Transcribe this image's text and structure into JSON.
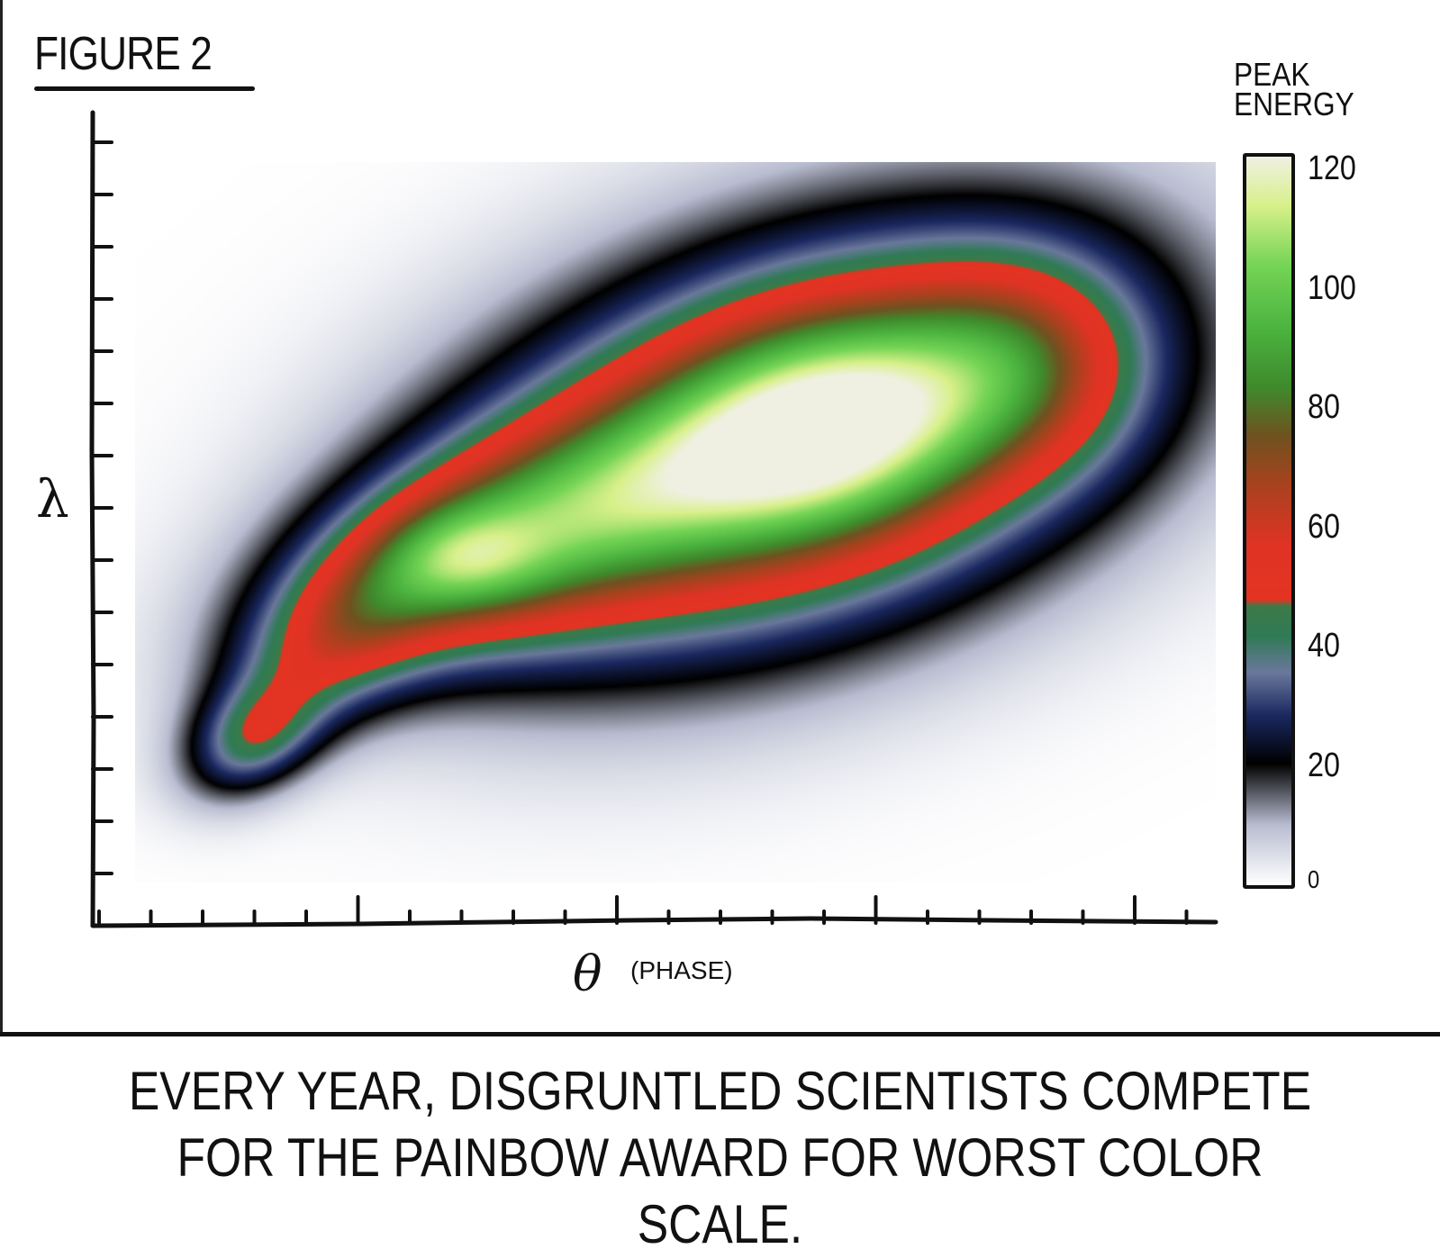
{
  "figure_label": "FIGURE 2",
  "caption": {
    "line1": "EVERY YEAR, DISGRUNTLED SCIENTISTS COMPETE",
    "line2": "FOR THE PAINBOW AWARD FOR WORST COLOR SCALE."
  },
  "chart_data": {
    "type": "heatmap",
    "title": "",
    "xlabel": "θ",
    "xlabel_note": "(PHASE)",
    "ylabel": "λ",
    "colorbar": {
      "label": "PEAK ENERGY",
      "ticks": [
        "0",
        "20",
        "40",
        "60",
        "80",
        "100",
        "120"
      ],
      "range": [
        0,
        120
      ],
      "colormap": [
        {
          "value": 0,
          "color": "#ffffff"
        },
        {
          "value": 10,
          "color": "#b8bcd0"
        },
        {
          "value": 20,
          "color": "#000000"
        },
        {
          "value": 28,
          "color": "#1a2860"
        },
        {
          "value": 35,
          "color": "#6a789c"
        },
        {
          "value": 41,
          "color": "#2f7a55"
        },
        {
          "value": 46,
          "color": "#3d7a48"
        },
        {
          "value": 47,
          "color": "#e33322"
        },
        {
          "value": 56,
          "color": "#e03325"
        },
        {
          "value": 66,
          "color": "#a8421e"
        },
        {
          "value": 74,
          "color": "#6e5220"
        },
        {
          "value": 82,
          "color": "#3f8a2c"
        },
        {
          "value": 92,
          "color": "#4cb540"
        },
        {
          "value": 102,
          "color": "#74d455"
        },
        {
          "value": 112,
          "color": "#d8f08a"
        },
        {
          "value": 120,
          "color": "#f0f0e2"
        }
      ]
    },
    "peak_value": 120,
    "grid": false,
    "x_ticks_labeled": false,
    "y_ticks_labeled": false
  }
}
